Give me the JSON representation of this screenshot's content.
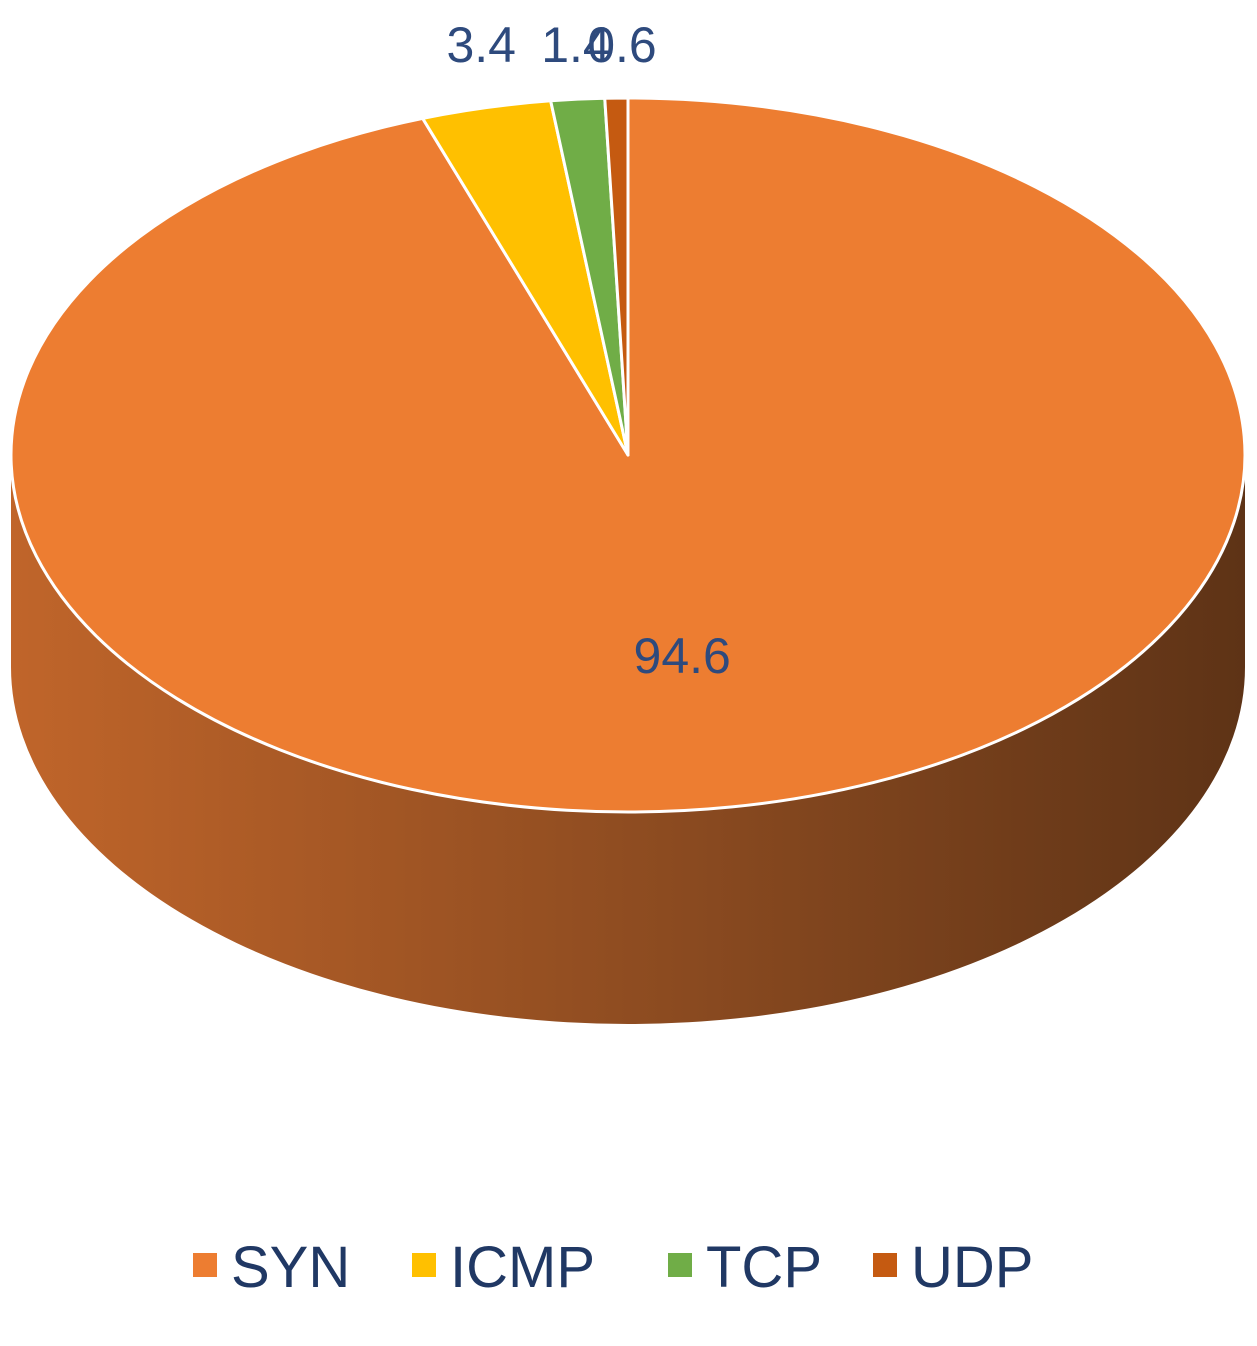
{
  "chart_data": {
    "type": "pie",
    "style": "3d",
    "title": "",
    "categories": [
      "SYN",
      "ICMP",
      "TCP",
      "UDP"
    ],
    "values": [
      94.6,
      3.4,
      1.4,
      0.6
    ],
    "data_labels": [
      "94.6",
      "3.4",
      "1.4",
      "0.6"
    ],
    "colors": [
      "#ED7D31",
      "#FFC000",
      "#70AD47",
      "#C55A11"
    ],
    "side_color_light": "#C0652A",
    "side_color_dark": "#5E3316",
    "label_color": "#2E4A7D",
    "legend": {
      "placement": "bottom",
      "entries": [
        "SYN",
        "ICMP",
        "TCP",
        "UDP"
      ]
    }
  }
}
